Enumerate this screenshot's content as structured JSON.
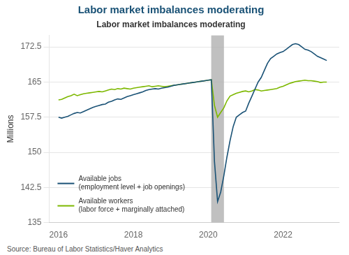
{
  "chart_data": {
    "type": "line",
    "title": "Labor market imbalances moderating",
    "subtitle": "Labor market imbalances moderating",
    "ylabel": "Millions",
    "source": "Source: Bureau of Labor Statistics/Haver Analytics",
    "x": [
      2016.0,
      2016.083,
      2016.167,
      2016.25,
      2016.333,
      2016.417,
      2016.5,
      2016.583,
      2016.667,
      2016.75,
      2016.833,
      2016.917,
      2017.0,
      2017.083,
      2017.167,
      2017.25,
      2017.333,
      2017.417,
      2017.5,
      2017.583,
      2017.667,
      2017.75,
      2017.833,
      2017.917,
      2018.0,
      2018.083,
      2018.167,
      2018.25,
      2018.333,
      2018.417,
      2018.5,
      2018.583,
      2018.667,
      2018.75,
      2018.833,
      2018.917,
      2019.0,
      2019.083,
      2019.167,
      2019.25,
      2019.333,
      2019.417,
      2019.5,
      2019.583,
      2019.667,
      2019.75,
      2019.833,
      2019.917,
      2020.0,
      2020.083,
      2020.167,
      2020.25,
      2020.333,
      2020.417,
      2020.5,
      2020.583,
      2020.667,
      2020.75,
      2020.833,
      2020.917,
      2021.0,
      2021.083,
      2021.167,
      2021.25,
      2021.333,
      2021.417,
      2021.5,
      2021.583,
      2021.667,
      2021.75,
      2021.833,
      2021.917,
      2022.0,
      2022.083,
      2022.167,
      2022.25,
      2022.333,
      2022.417,
      2022.5,
      2022.583,
      2022.667,
      2022.75,
      2022.833,
      2022.917,
      2023.0,
      2023.083,
      2023.167
    ],
    "series": [
      {
        "name": "Available jobs\n(employment level + job openings)",
        "color": "#1a5276",
        "values": [
          157.5,
          157.3,
          157.5,
          157.7,
          158.0,
          158.3,
          158.5,
          158.4,
          158.7,
          159.0,
          159.3,
          159.6,
          159.8,
          160.0,
          160.2,
          160.3,
          160.7,
          160.9,
          161.2,
          161.4,
          161.3,
          161.6,
          161.9,
          162.1,
          162.3,
          162.5,
          162.7,
          162.9,
          163.2,
          163.4,
          163.5,
          163.6,
          163.5,
          163.7,
          163.8,
          163.9,
          164.1,
          164.3,
          164.4,
          164.5,
          164.6,
          164.7,
          164.8,
          164.9,
          165.0,
          165.1,
          165.2,
          165.3,
          165.4,
          165.5,
          148.0,
          139.5,
          141.5,
          145.0,
          149.0,
          152.5,
          155.5,
          157.5,
          158.0,
          158.5,
          158.8,
          160.5,
          162.0,
          163.5,
          165.0,
          166.0,
          167.5,
          169.0,
          170.0,
          170.5,
          171.0,
          171.3,
          171.5,
          172.0,
          172.5,
          173.0,
          173.2,
          173.0,
          172.5,
          172.0,
          171.8,
          171.5,
          171.0,
          170.5,
          170.2,
          169.9,
          169.6
        ]
      },
      {
        "name": "Available workers\n(labor force + marginally attached)",
        "color": "#7db800",
        "values": [
          161.2,
          161.3,
          161.6,
          161.9,
          162.1,
          162.4,
          162.1,
          162.3,
          162.5,
          162.6,
          162.7,
          162.8,
          162.9,
          163.0,
          162.9,
          163.1,
          163.3,
          163.5,
          163.4,
          163.6,
          163.5,
          163.7,
          163.6,
          163.5,
          163.7,
          163.8,
          163.9,
          164.0,
          164.1,
          164.2,
          164.0,
          164.1,
          164.2,
          164.1,
          164.0,
          164.1,
          164.2,
          164.3,
          164.4,
          164.5,
          164.6,
          164.7,
          164.8,
          164.9,
          165.0,
          165.1,
          165.2,
          165.3,
          165.4,
          165.5,
          160.0,
          157.5,
          158.5,
          159.5,
          161.0,
          162.0,
          162.3,
          162.6,
          162.8,
          163.0,
          163.1,
          162.9,
          163.1,
          163.4,
          163.3,
          163.1,
          163.2,
          163.3,
          163.4,
          163.5,
          163.6,
          163.9,
          164.1,
          164.4,
          164.7,
          164.9,
          165.1,
          165.2,
          165.3,
          165.4,
          165.3,
          165.3,
          165.2,
          165.1,
          164.9,
          165.0,
          165.0
        ]
      }
    ],
    "xlim": [
      2015.75,
      2023.5
    ],
    "xticks": [
      2016,
      2018,
      2020,
      2022
    ],
    "ylim": [
      135,
      175
    ],
    "yticks": [
      135,
      142.5,
      150,
      157.5,
      165,
      172.5
    ],
    "shaded_x": [
      2020.08,
      2020.42
    ],
    "grid": "y",
    "legend": "lower left"
  }
}
